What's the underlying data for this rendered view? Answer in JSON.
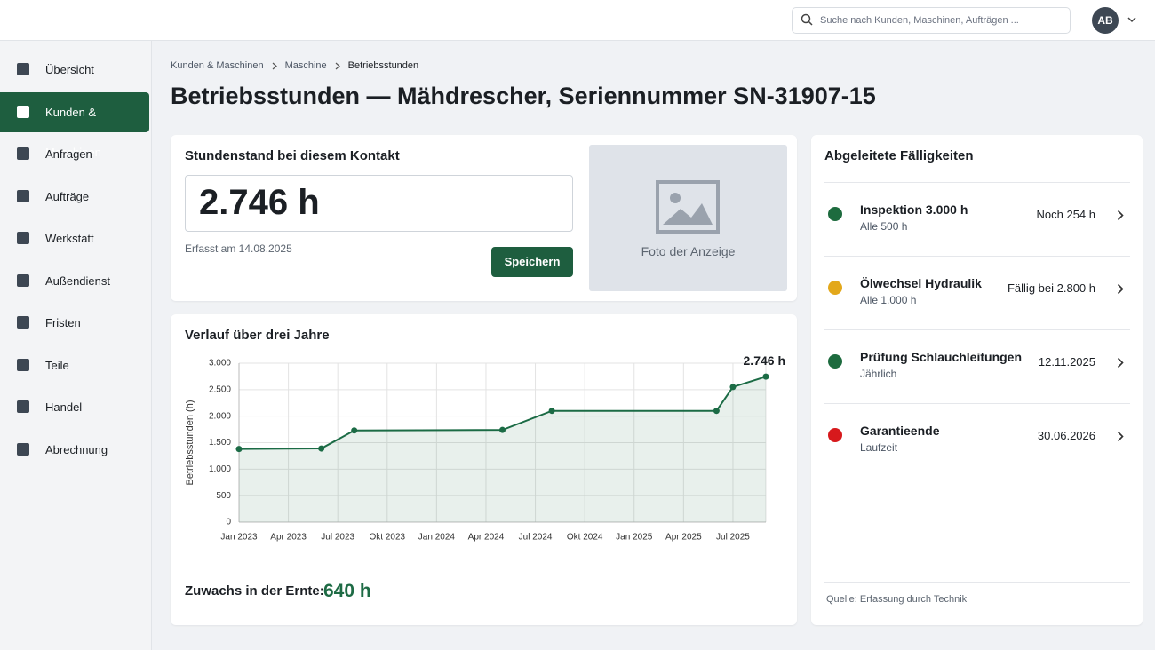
{
  "header": {
    "search_placeholder": "Suche nach Kunden, Maschinen, Aufträgen ...",
    "avatar": "AB"
  },
  "sidebar": {
    "items": [
      "Übersicht",
      "Kunden & Maschinen",
      "Anfragen",
      "Aufträge",
      "Werkstatt",
      "Außendienst",
      "Fristen",
      "Teile",
      "Handel",
      "Abrechnung"
    ],
    "active": 1
  },
  "breadcrumb": [
    "Kunden & Maschinen",
    "Maschine",
    "Betriebsstunden"
  ],
  "title": "Betriebsstunden — Mähdrescher, Seriennummer SN-31907-15",
  "reading_card": {
    "heading": "Stundenstand bei diesem Kontakt",
    "value": "2.746 h",
    "captured": "Erfasst am 14.08.2025",
    "button": "Speichern",
    "photo_label": "Foto der Anzeige"
  },
  "chart_card": {
    "heading": "Verlauf über drei Jahre",
    "growth_label": "Zuwachs in der Ernte:",
    "growth_value": "640 h"
  },
  "chart_data": {
    "type": "line",
    "ylabel": "Betriebsstunden (h)",
    "x": [
      "2023-01",
      "2023-06",
      "2023-08",
      "2024-05",
      "2024-08",
      "2025-06",
      "2025-07",
      "2025-09"
    ],
    "values": [
      1380,
      1390,
      1730,
      1740,
      2100,
      2100,
      2550,
      2746
    ],
    "value_labels": [
      null,
      null,
      null,
      null,
      null,
      null,
      null,
      "2.746 h"
    ],
    "color": "#1b6b45",
    "xlim": [
      "2023-01",
      "2025-09"
    ],
    "xticks": [
      {
        "value": "2023-01",
        "label": "Jan 2023"
      },
      {
        "value": "2023-04",
        "label": "Apr 2023"
      },
      {
        "value": "2023-07",
        "label": "Jul 2023"
      },
      {
        "value": "2023-10",
        "label": "Okt 2023"
      },
      {
        "value": "2024-01",
        "label": "Jan 2024"
      },
      {
        "value": "2024-04",
        "label": "Apr 2024"
      },
      {
        "value": "2024-07",
        "label": "Jul 2024"
      },
      {
        "value": "2024-10",
        "label": "Okt 2024"
      },
      {
        "value": "2025-01",
        "label": "Jan 2025"
      },
      {
        "value": "2025-04",
        "label": "Apr 2025"
      },
      {
        "value": "2025-07",
        "label": "Jul 2025"
      }
    ],
    "ylim": [
      0,
      3000
    ],
    "yticks": [
      0,
      500,
      {
        "value": 1000,
        "label": "1.000"
      },
      {
        "value": 1500,
        "label": "1.500"
      },
      {
        "value": 2000,
        "label": "2.000"
      },
      {
        "value": 2500,
        "label": "2.500"
      },
      {
        "value": 3000,
        "label": "3.000"
      }
    ],
    "grid": true
  },
  "dues": {
    "heading": "Abgeleitete Fälligkeiten",
    "items": [
      {
        "title": "Inspektion 3.000 h",
        "subtitle": "Alle 500 h",
        "status": "Noch 254 h",
        "color": "#1d6b3e"
      },
      {
        "title": "Ölwechsel Hydraulik",
        "subtitle": "Alle 1.000 h",
        "status": "Fällig bei 2.800 h",
        "color": "#e3a81b"
      },
      {
        "title": "Prüfung Schlauchleitungen",
        "subtitle": "Jährlich",
        "status": "12.11.2025",
        "color": "#1d6b3e"
      },
      {
        "title": "Garantieende",
        "subtitle": "Laufzeit",
        "status": "30.06.2026",
        "color": "#d7191c"
      }
    ],
    "source": "Quelle: Erfassung durch Technik"
  }
}
